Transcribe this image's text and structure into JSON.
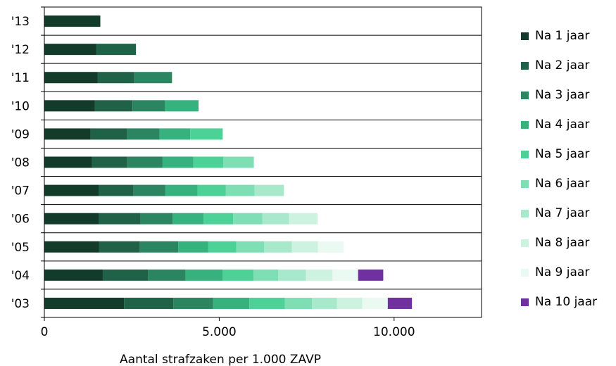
{
  "chart_data": {
    "type": "bar",
    "orientation": "horizontal",
    "stacked": true,
    "title": "",
    "xlabel": "Aantal strafzaken per 1.000 ZAVP",
    "ylabel": "",
    "xlim": [
      0,
      12500
    ],
    "x_ticks": [
      0,
      5000,
      10000
    ],
    "x_tick_labels": [
      "0",
      "5.000",
      "10.000"
    ],
    "grid": "horizontal lines between categories",
    "legend_position": "right",
    "categories": [
      "'13",
      "'12",
      "'11",
      "'10",
      "'09",
      "'08",
      "'07",
      "'06",
      "'05",
      "'04",
      "'03"
    ],
    "series": [
      {
        "name": "Na 1 jaar",
        "color": "#133B2B",
        "values": [
          1600,
          1480,
          1520,
          1440,
          1320,
          1360,
          1550,
          1550,
          1560,
          1670,
          2280
        ]
      },
      {
        "name": "Na 2 jaar",
        "color": "#1F6247",
        "values": [
          null,
          1140,
          1050,
          1080,
          1050,
          1010,
          1000,
          1200,
          1170,
          1290,
          1410
        ]
      },
      {
        "name": "Na 3 jaar",
        "color": "#2A8560",
        "values": [
          null,
          null,
          1080,
          930,
          920,
          1010,
          910,
          920,
          1100,
          1080,
          1130
        ]
      },
      {
        "name": "Na 4 jaar",
        "color": "#36B27E",
        "values": [
          null,
          null,
          null,
          960,
          880,
          880,
          920,
          880,
          850,
          1060,
          1040
        ]
      },
      {
        "name": "Na 5 jaar",
        "color": "#4CD196",
        "values": [
          null,
          null,
          null,
          null,
          930,
          860,
          810,
          850,
          810,
          880,
          1020
        ]
      },
      {
        "name": "Na 6 jaar",
        "color": "#7EDFB4",
        "values": [
          null,
          null,
          null,
          null,
          null,
          870,
          820,
          830,
          790,
          710,
          770
        ]
      },
      {
        "name": "Na 7 jaar",
        "color": "#A9E9CB",
        "values": [
          null,
          null,
          null,
          null,
          null,
          null,
          840,
          770,
          800,
          790,
          720
        ]
      },
      {
        "name": "Na 8 jaar",
        "color": "#CDF2E0",
        "values": [
          null,
          null,
          null,
          null,
          null,
          null,
          null,
          810,
          740,
          760,
          720
        ]
      },
      {
        "name": "Na 9 jaar",
        "color": "#EAFAF2",
        "values": [
          null,
          null,
          null,
          null,
          null,
          null,
          null,
          null,
          740,
          730,
          730
        ]
      },
      {
        "name": "Na 10 jaar",
        "color": "#7030A0",
        "values": [
          null,
          null,
          null,
          null,
          null,
          null,
          null,
          null,
          null,
          720,
          690
        ]
      }
    ]
  }
}
